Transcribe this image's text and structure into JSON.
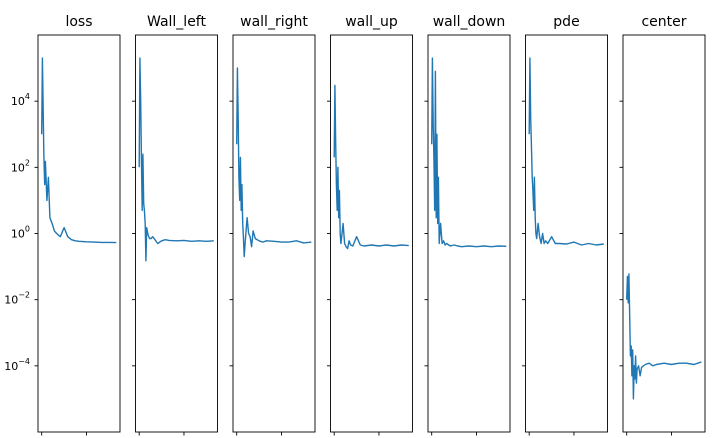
{
  "chart_data": {
    "type": "line",
    "yscale": "log",
    "ylim": [
      1e-06,
      1000000
    ],
    "shared_y": true,
    "ytick_labels": [
      {
        "value": 10000,
        "base": "10",
        "exp": "4"
      },
      {
        "value": 100,
        "base": "10",
        "exp": "2"
      },
      {
        "value": 1,
        "base": "10",
        "exp": "0"
      },
      {
        "value": 0.01,
        "base": "10",
        "exp": "−2"
      },
      {
        "value": 0.0001,
        "base": "10",
        "exp": "−4"
      }
    ],
    "line_color": "#1f77b4",
    "panels": [
      {
        "title": "loss",
        "x": [
          0,
          1,
          2,
          3,
          4,
          5,
          7,
          9,
          11,
          14,
          17,
          20,
          25,
          30,
          35,
          40,
          45,
          50,
          60,
          70,
          80,
          90,
          100
        ],
        "y": [
          1000,
          200000,
          5000,
          200,
          30,
          150,
          10,
          50,
          3,
          2,
          1.2,
          1,
          0.8,
          1.5,
          0.8,
          0.65,
          0.6,
          0.58,
          0.56,
          0.55,
          0.54,
          0.54,
          0.53
        ]
      },
      {
        "title": "Wall_left",
        "x": [
          0,
          1,
          2,
          3,
          4,
          5,
          6,
          7,
          8,
          9,
          10,
          12,
          14,
          16,
          18,
          20,
          25,
          30,
          35,
          40,
          50,
          60,
          70,
          80,
          90,
          100
        ],
        "y": [
          100,
          200000,
          10000,
          200,
          5,
          250,
          8,
          5,
          2,
          0.15,
          1.5,
          0.9,
          0.7,
          0.7,
          0.8,
          0.7,
          0.5,
          0.6,
          0.65,
          0.62,
          0.6,
          0.62,
          0.58,
          0.6,
          0.58,
          0.6
        ]
      },
      {
        "title": "wall_right",
        "x": [
          0,
          1,
          2,
          3,
          4,
          5,
          6,
          7,
          8,
          9,
          10,
          12,
          14,
          16,
          18,
          20,
          22,
          25,
          30,
          35,
          40,
          50,
          60,
          70,
          80,
          90,
          100
        ],
        "y": [
          500,
          100000,
          3000,
          50,
          10,
          200,
          5,
          30,
          2,
          0.8,
          0.2,
          0.8,
          3,
          1,
          0.8,
          0.4,
          1.2,
          0.7,
          0.6,
          0.55,
          0.6,
          0.58,
          0.55,
          0.55,
          0.6,
          0.52,
          0.55
        ]
      },
      {
        "title": "wall_up",
        "x": [
          0,
          1,
          2,
          3,
          4,
          5,
          6,
          7,
          8,
          9,
          10,
          12,
          14,
          16,
          18,
          20,
          22,
          25,
          30,
          35,
          40,
          50,
          60,
          70,
          80,
          90,
          100
        ],
        "y": [
          200,
          30000,
          500,
          30,
          5,
          100,
          3,
          20,
          1,
          0.5,
          0.8,
          2,
          0.5,
          0.4,
          0.35,
          0.6,
          0.45,
          0.42,
          0.8,
          0.45,
          0.42,
          0.45,
          0.42,
          0.45,
          0.42,
          0.45,
          0.43
        ]
      },
      {
        "title": "wall_down",
        "x": [
          0,
          1,
          2,
          3,
          4,
          5,
          6,
          7,
          8,
          9,
          10,
          12,
          14,
          16,
          18,
          20,
          25,
          30,
          35,
          40,
          50,
          60,
          70,
          80,
          90,
          100
        ],
        "y": [
          500,
          200000,
          2000,
          200,
          5,
          80000,
          3,
          1000,
          2,
          50,
          0.5,
          2,
          0.5,
          0.6,
          0.45,
          0.5,
          0.42,
          0.45,
          0.42,
          0.4,
          0.42,
          0.4,
          0.42,
          0.4,
          0.42,
          0.41
        ]
      },
      {
        "title": "pde",
        "x": [
          0,
          1,
          2,
          3,
          4,
          5,
          6,
          7,
          8,
          9,
          10,
          12,
          14,
          16,
          18,
          20,
          22,
          25,
          30,
          35,
          40,
          50,
          60,
          70,
          80,
          90,
          100
        ],
        "y": [
          1000,
          200000,
          3000,
          500,
          50,
          20,
          5,
          50,
          3,
          1,
          0.7,
          2,
          0.8,
          0.5,
          1,
          0.5,
          0.6,
          0.5,
          0.8,
          0.5,
          0.5,
          0.48,
          0.55,
          0.45,
          0.5,
          0.45,
          0.48
        ]
      },
      {
        "title": "center",
        "x": [
          0,
          1,
          2,
          3,
          4,
          5,
          6,
          7,
          8,
          9,
          10,
          11,
          12,
          13,
          14,
          16,
          18,
          20,
          25,
          30,
          35,
          40,
          50,
          60,
          70,
          80,
          90,
          100
        ],
        "y": [
          0.01,
          0.05,
          0.008,
          0.06,
          0.003,
          0.0002,
          0.0004,
          5e-05,
          0.0003,
          1e-05,
          0.0001,
          4e-05,
          0.0002,
          3e-05,
          8e-05,
          0.0001,
          5e-05,
          9e-05,
          0.00011,
          0.00012,
          0.0001,
          0.00011,
          0.00012,
          0.00011,
          0.00012,
          0.00012,
          0.00011,
          0.00013
        ]
      }
    ]
  }
}
